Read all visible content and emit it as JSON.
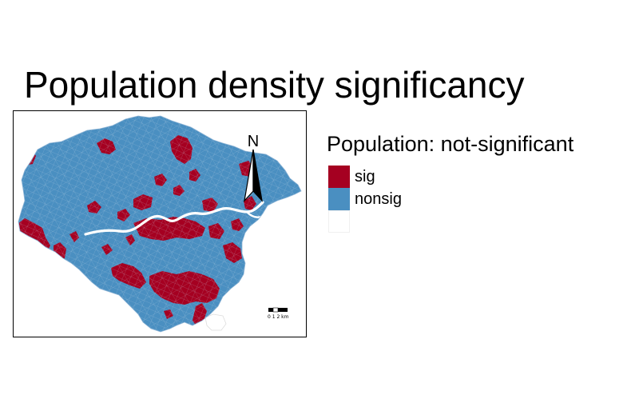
{
  "title": "Population density significancy",
  "map": {
    "north_label": "N",
    "scale_label": "0 1 2 km",
    "colors": {
      "sig": "#a50021",
      "nonsig": "#4a8fc1",
      "nodata": "#ffffff",
      "river": "#ffffff",
      "borders": "#c8d8e8"
    }
  },
  "legend": {
    "title": "Population: not-significant",
    "items": [
      {
        "label": "sig",
        "color": "#a50021"
      },
      {
        "label": "nonsig",
        "color": "#4a8fc1"
      },
      {
        "label": "",
        "color": "#ffffff"
      }
    ]
  }
}
